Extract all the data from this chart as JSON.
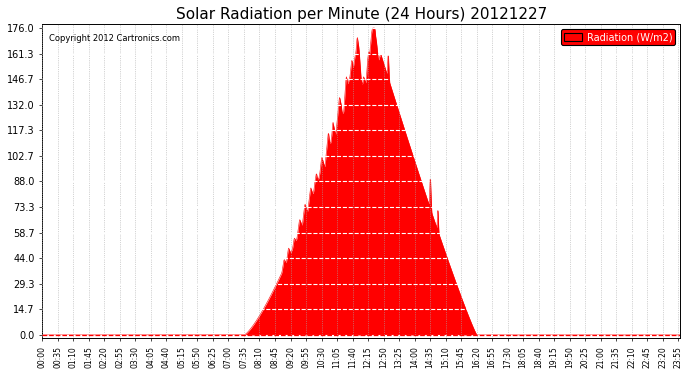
{
  "title": "Solar Radiation per Minute (24 Hours) 20121227",
  "copyright_text": "Copyright 2012 Cartronics.com",
  "legend_label": "Radiation (W/m2)",
  "bg_color": "#ffffff",
  "plot_bg_color": "#ffffff",
  "fill_color": "#ff0000",
  "line_color": "#ff0000",
  "dashed_line_color": "#ff0000",
  "grid_color": "#aaaaaa",
  "ylim": [
    0.0,
    176.0
  ],
  "yticks": [
    0.0,
    14.7,
    29.3,
    44.0,
    58.7,
    73.3,
    88.0,
    102.7,
    117.3,
    132.0,
    146.7,
    161.3,
    176.0
  ],
  "total_minutes": 1440,
  "x_tick_interval": 35
}
